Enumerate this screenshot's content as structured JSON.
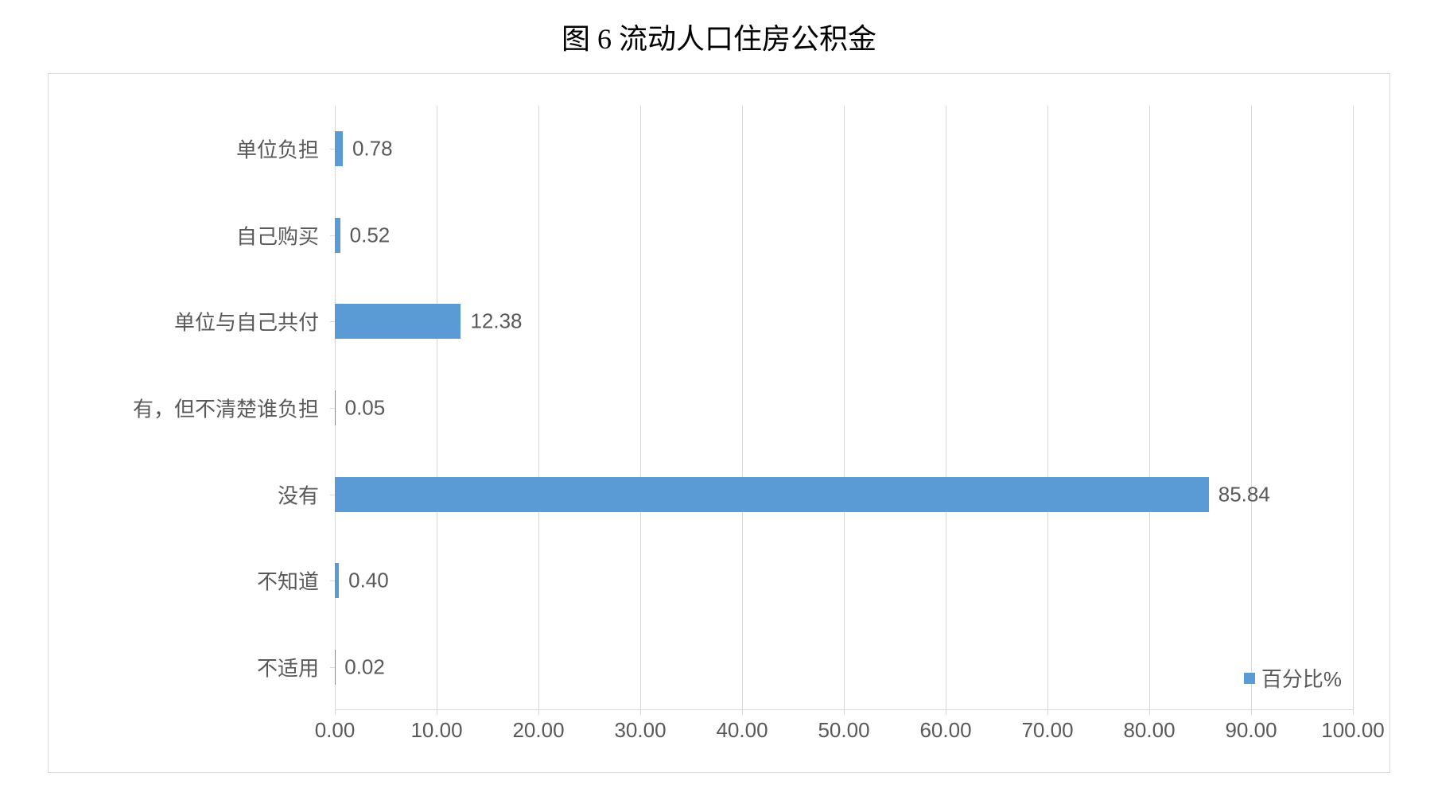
{
  "title": "图 6 流动人口住房公积金",
  "chart": {
    "type": "bar-horizontal",
    "categories": [
      "单位负担",
      "自己购买",
      "单位与自己共付",
      "有，但不清楚谁负担",
      "没有",
      "不知道",
      "不适用"
    ],
    "values": [
      0.78,
      0.52,
      12.38,
      0.05,
      85.84,
      0.4,
      0.02
    ],
    "value_labels": [
      "0.78",
      "0.52",
      "12.38",
      "0.05",
      "85.84",
      "0.40",
      "0.02"
    ],
    "bar_color": "#5b9bd5",
    "xlim": [
      0,
      100
    ],
    "xtick_step": 10,
    "xtick_labels": [
      "0.00",
      "10.00",
      "20.00",
      "30.00",
      "40.00",
      "50.00",
      "60.00",
      "70.00",
      "80.00",
      "90.00",
      "100.00"
    ],
    "grid_color": "#d9d9d9",
    "background_color": "#ffffff",
    "text_color": "#595959",
    "label_fontsize": 26,
    "title_fontsize": 36,
    "title_color": "#000000",
    "bar_height_ratio": 0.41,
    "border_color": "#d9d9d9"
  },
  "legend": {
    "label": "百分比%",
    "swatch_color": "#5b9bd5"
  }
}
